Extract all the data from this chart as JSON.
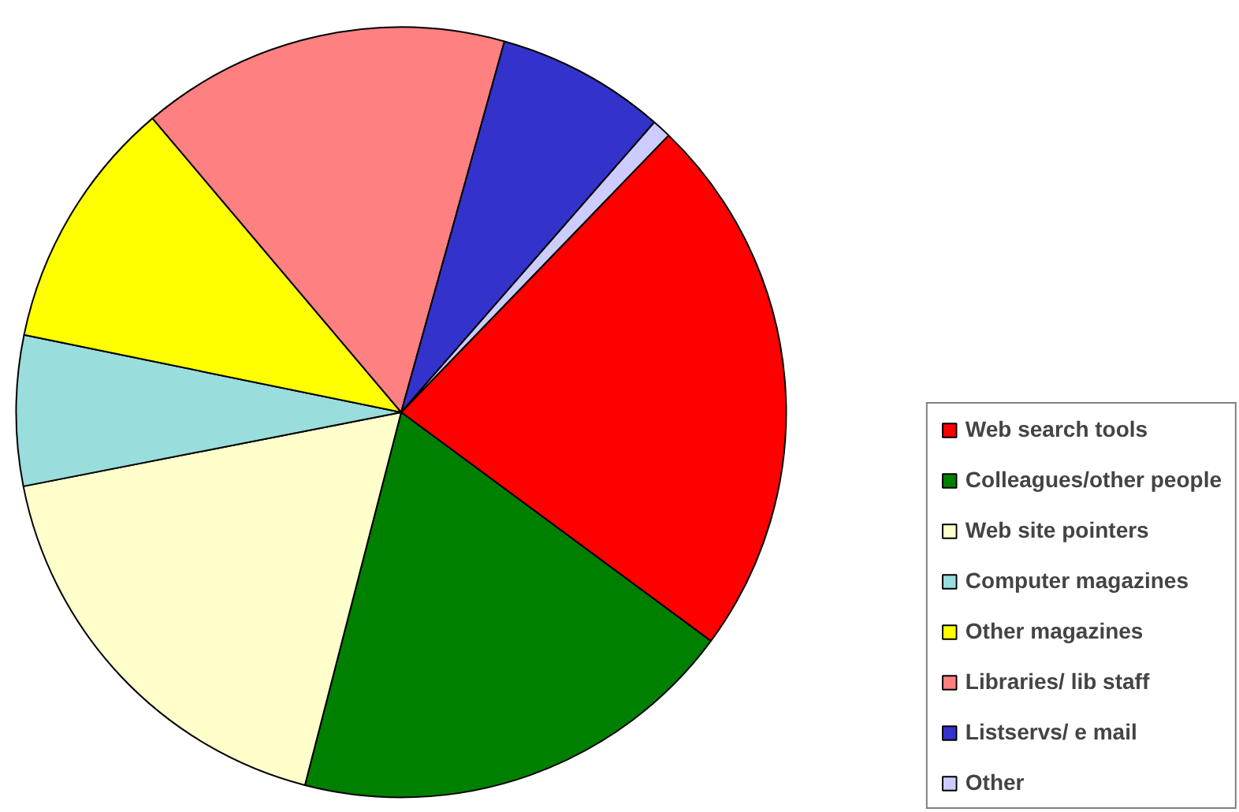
{
  "chart_data": {
    "type": "pie",
    "categories": [
      "Web search tools",
      "Colleagues/other people",
      "Web site pointers",
      "Computer magazines",
      "Other magazines",
      "Libraries/ lib staff",
      "Listservs/ e mail",
      "Other"
    ],
    "values": [
      22.9,
      18.9,
      17.9,
      6.3,
      10.6,
      15.5,
      7.1,
      0.8
    ],
    "colors": [
      "#ff0000",
      "#008000",
      "#ffffcc",
      "#99dddd",
      "#ffff00",
      "#ff8080",
      "#3333cc",
      "#ccccff"
    ],
    "legend": "right"
  }
}
